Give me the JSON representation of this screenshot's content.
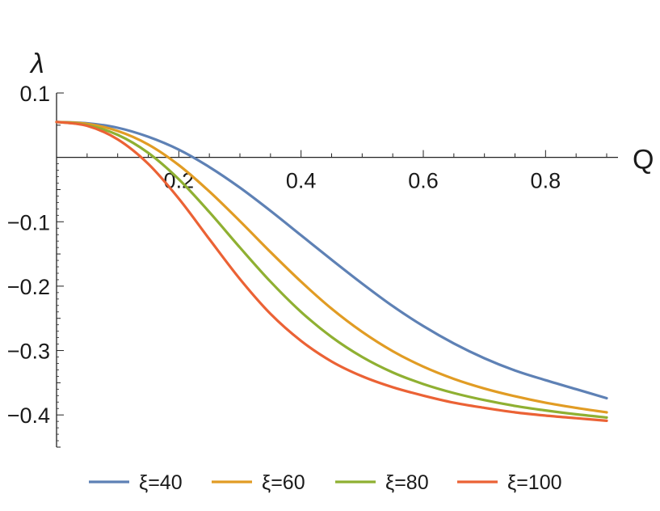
{
  "chart_data": {
    "type": "line",
    "title": "",
    "xlabel": "Q",
    "ylabel": "λ",
    "xlim": [
      0,
      0.9
    ],
    "ylim": [
      -0.45,
      0.1
    ],
    "x_ticks": [
      {
        "value": 0.2,
        "label": "0.2"
      },
      {
        "value": 0.4,
        "label": "0.4"
      },
      {
        "value": 0.6,
        "label": "0.6"
      },
      {
        "value": 0.8,
        "label": "0.8"
      }
    ],
    "y_ticks": [
      {
        "value": 0.1,
        "label": "0.1"
      },
      {
        "value": -0.1,
        "label": "−0.1"
      },
      {
        "value": -0.2,
        "label": "−0.2"
      },
      {
        "value": -0.3,
        "label": "−0.3"
      },
      {
        "value": -0.4,
        "label": "−0.4"
      }
    ],
    "grid": false,
    "legend_position": "bottom",
    "series": [
      {
        "name": "ξ=40",
        "color": "#5E81B5",
        "x": [
          0,
          0.05,
          0.1,
          0.15,
          0.2,
          0.25,
          0.3,
          0.35,
          0.4,
          0.45,
          0.5,
          0.55,
          0.6,
          0.65,
          0.7,
          0.75,
          0.8,
          0.85,
          0.9
        ],
        "y": [
          0.055,
          0.053,
          0.046,
          0.032,
          0.012,
          -0.015,
          -0.047,
          -0.083,
          -0.121,
          -0.159,
          -0.196,
          -0.231,
          -0.262,
          -0.289,
          -0.312,
          -0.331,
          -0.346,
          -0.36,
          -0.374
        ]
      },
      {
        "name": "ξ=60",
        "color": "#E19C24",
        "x": [
          0,
          0.05,
          0.1,
          0.15,
          0.2,
          0.25,
          0.3,
          0.35,
          0.4,
          0.45,
          0.5,
          0.55,
          0.6,
          0.65,
          0.7,
          0.75,
          0.8,
          0.85,
          0.9
        ],
        "y": [
          0.055,
          0.052,
          0.041,
          0.02,
          -0.012,
          -0.053,
          -0.099,
          -0.147,
          -0.193,
          -0.235,
          -0.271,
          -0.301,
          -0.325,
          -0.344,
          -0.359,
          -0.371,
          -0.381,
          -0.389,
          -0.396
        ]
      },
      {
        "name": "ξ=80",
        "color": "#8FB032",
        "x": [
          0,
          0.05,
          0.1,
          0.15,
          0.2,
          0.25,
          0.3,
          0.35,
          0.4,
          0.45,
          0.5,
          0.55,
          0.6,
          0.65,
          0.7,
          0.75,
          0.8,
          0.85,
          0.9
        ],
        "y": [
          0.055,
          0.05,
          0.035,
          0.007,
          -0.034,
          -0.085,
          -0.14,
          -0.193,
          -0.24,
          -0.279,
          -0.31,
          -0.334,
          -0.352,
          -0.366,
          -0.377,
          -0.386,
          -0.393,
          -0.399,
          -0.404
        ]
      },
      {
        "name": "ξ=100",
        "color": "#EB6235",
        "x": [
          0,
          0.05,
          0.1,
          0.15,
          0.2,
          0.25,
          0.3,
          0.35,
          0.4,
          0.45,
          0.5,
          0.55,
          0.6,
          0.65,
          0.7,
          0.75,
          0.8,
          0.85,
          0.9
        ],
        "y": [
          0.055,
          0.049,
          0.028,
          -0.01,
          -0.064,
          -0.127,
          -0.189,
          -0.243,
          -0.285,
          -0.317,
          -0.34,
          -0.357,
          -0.37,
          -0.381,
          -0.389,
          -0.396,
          -0.401,
          -0.405,
          -0.409
        ]
      }
    ]
  }
}
